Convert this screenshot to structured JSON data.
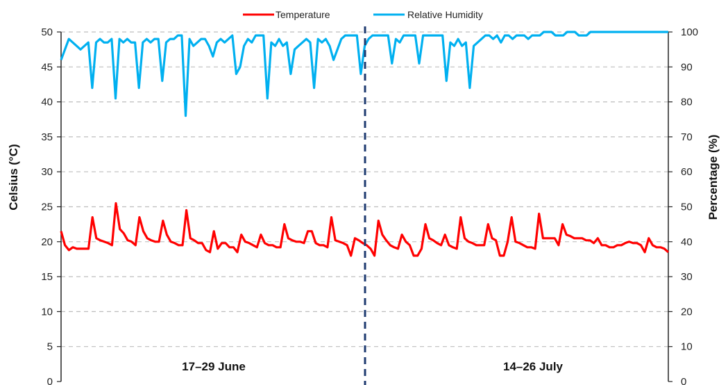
{
  "chart_data": {
    "type": "line",
    "y_left": {
      "label": "Celsius (°C)",
      "ylim": [
        0,
        50
      ],
      "ticks": [
        "0",
        "5",
        "10",
        "15",
        "20",
        "25",
        "30",
        "35",
        "40",
        "45",
        "50"
      ]
    },
    "y_right": {
      "label": "Percentage (%)",
      "ylim": [
        0,
        100
      ],
      "ticks": [
        "0",
        "10",
        "20",
        "30",
        "40",
        "50",
        "60",
        "70",
        "80",
        "90",
        "100"
      ]
    },
    "grid": true,
    "legend_position": "top-center",
    "period_labels": [
      "17–29 June",
      "14–26 July"
    ],
    "series": [
      {
        "name": "Temperature",
        "axis": "left",
        "color": "#ff0000",
        "values": [
          21.5,
          19.5,
          18.8,
          19.2,
          19,
          19,
          19,
          19,
          23.5,
          20.5,
          20.2,
          20,
          19.8,
          19.5,
          25.5,
          21.8,
          21.2,
          20.2,
          20,
          19.5,
          23.5,
          21.5,
          20.5,
          20.2,
          20,
          20,
          23,
          21,
          20,
          19.8,
          19.5,
          19.5,
          24.5,
          20.5,
          20.2,
          19.8,
          19.8,
          18.8,
          18.5,
          21.5,
          19,
          19.8,
          19.8,
          19.2,
          19.2,
          18.5,
          21,
          20,
          19.8,
          19.5,
          19.2,
          21,
          19.8,
          19.5,
          19.5,
          19.2,
          19.2,
          22.5,
          20.5,
          20.2,
          20,
          20,
          19.8,
          21.5,
          21.5,
          19.8,
          19.5,
          19.5,
          19.2,
          23.5,
          20.2,
          20,
          19.8,
          19.5,
          18,
          20.5,
          20.2,
          19.8,
          19.5,
          19,
          18,
          23,
          21,
          20.2,
          19.5,
          19.2,
          19,
          21,
          20,
          19.5,
          18,
          18,
          19,
          22.5,
          20.5,
          20.2,
          19.8,
          19.5,
          21,
          19.5,
          19.2,
          19,
          23.5,
          20.5,
          20,
          19.8,
          19.5,
          19.5,
          19.5,
          22.5,
          20.5,
          20.2,
          18,
          18,
          20,
          23.5,
          20,
          19.8,
          19.5,
          19.2,
          19.2,
          19,
          24,
          20.5,
          20.5,
          20.5,
          20.5,
          19.5,
          22.5,
          21,
          20.8,
          20.5,
          20.5,
          20.5,
          20.2,
          20.2,
          19.8,
          20.5,
          19.5,
          19.5,
          19.2,
          19.2,
          19.5,
          19.5,
          19.8,
          20,
          19.8,
          19.8,
          19.5,
          18.5,
          20.5,
          19.5,
          19.2,
          19.2,
          19,
          18.5
        ],
        "markers": []
      },
      {
        "name": "Relative Humidity",
        "axis": "right",
        "color": "#00b0f0",
        "values": [
          92,
          95,
          98,
          97,
          96,
          95,
          96,
          97,
          84,
          97,
          98,
          97,
          97,
          98,
          81,
          98,
          97,
          98,
          97,
          97,
          84,
          97,
          98,
          97,
          98,
          98,
          86,
          97,
          98,
          98,
          99,
          99,
          76,
          98,
          96,
          97,
          98,
          98,
          96,
          93,
          97,
          98,
          97,
          98,
          99,
          88,
          90,
          96,
          98,
          97,
          99,
          99,
          99,
          81,
          97,
          96,
          98,
          96,
          97,
          88,
          95,
          96,
          97,
          98,
          97,
          84,
          98,
          97,
          98,
          96,
          92,
          95,
          98,
          99,
          99,
          99,
          99,
          88,
          96,
          98,
          99,
          99,
          99,
          99,
          99,
          91,
          98,
          97,
          99,
          99,
          99,
          99,
          91,
          99,
          99,
          99,
          99,
          99,
          99,
          86,
          97,
          96,
          98,
          96,
          97,
          84,
          96,
          97,
          98,
          99,
          99,
          98,
          99,
          97,
          99,
          99,
          98,
          99,
          99,
          99,
          98,
          99,
          99,
          99,
          100,
          100,
          100,
          99,
          99,
          99,
          100,
          100,
          100,
          99,
          99,
          99,
          100,
          100,
          100,
          100,
          100,
          100,
          100,
          100,
          100,
          100,
          100,
          100,
          100,
          100,
          100,
          100,
          100,
          100,
          100,
          100,
          100
        ],
        "markers": []
      }
    ]
  }
}
